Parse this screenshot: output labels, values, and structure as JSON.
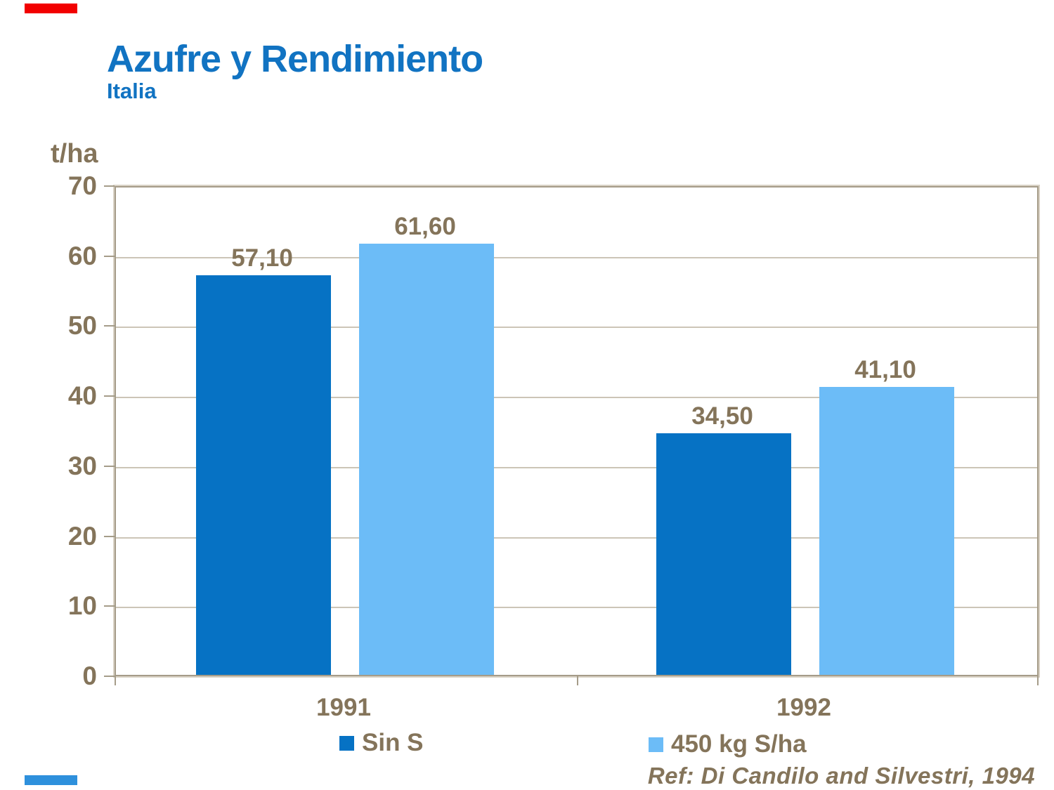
{
  "slide": {
    "title": "Azufre y Rendimiento",
    "subtitle": "Italia",
    "reference": "Ref: Di Candilo and Silvestri, 1994"
  },
  "colors": {
    "title_blue": "#1173C2",
    "text_brown": "#84745A",
    "axis_line": "#A59C89",
    "axis_line_light": "#D9D2C5",
    "gridline": "#CCC5B7",
    "series1": "#0672C4",
    "series2": "#6CBCF7",
    "accent_red": "#F20000",
    "accent_blue": "#2E90DC",
    "background": "#FFFFFF"
  },
  "chart_data": {
    "type": "bar",
    "title": "Azufre y Rendimiento",
    "subtitle": "Italia",
    "categories": [
      "1991",
      "1992"
    ],
    "series": [
      {
        "name": "Sin S",
        "values": [
          57.1,
          34.5
        ],
        "value_labels": [
          "57,10",
          "34,50"
        ],
        "color": "#0672C4"
      },
      {
        "name": "450 kg S/ha",
        "values": [
          61.6,
          41.1
        ],
        "value_labels": [
          "61,60",
          "41,10"
        ],
        "color": "#6CBCF7"
      }
    ],
    "xlabel": "",
    "ylabel": "t/ha",
    "ylim": [
      0,
      70
    ],
    "yticks": [
      70,
      60,
      50,
      40,
      30,
      20,
      10,
      0
    ],
    "grid": true,
    "legend_position": "bottom",
    "source": "Ref: Di Candilo and Silvestri, 1994"
  }
}
